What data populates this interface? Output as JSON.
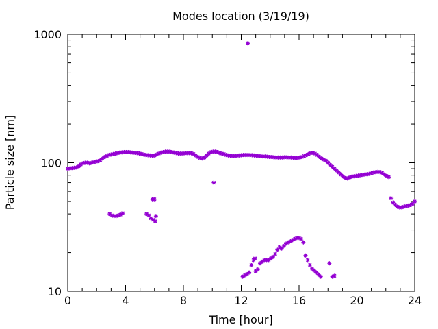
{
  "chart_data": {
    "type": "scatter",
    "title": "Modes location (3/19/19)",
    "xlabel": "Time [hour]",
    "ylabel": "Particle size [nm]",
    "xlim": [
      0,
      24
    ],
    "ylim": [
      10,
      1000
    ],
    "yscale": "log",
    "grid": false,
    "legend": "none",
    "xticks": [
      "0",
      "4",
      "8",
      "12",
      "16",
      "20",
      "24"
    ],
    "yticks": [
      "10",
      "100",
      "1000"
    ],
    "marker_color": "#9400D3",
    "marker": "asterisk",
    "series": [
      {
        "points": [
          [
            0.0,
            90
          ],
          [
            0.15,
            90.5
          ],
          [
            0.3,
            91
          ],
          [
            0.45,
            91.5
          ],
          [
            0.6,
            92
          ],
          [
            0.75,
            94
          ],
          [
            0.9,
            97
          ],
          [
            1.05,
            99
          ],
          [
            1.2,
            100
          ],
          [
            1.35,
            100
          ],
          [
            1.5,
            99
          ],
          [
            1.65,
            100
          ],
          [
            1.8,
            101
          ],
          [
            1.95,
            102
          ],
          [
            2.1,
            103
          ],
          [
            2.25,
            105
          ],
          [
            2.4,
            108
          ],
          [
            2.55,
            111
          ],
          [
            2.7,
            113
          ],
          [
            2.85,
            115
          ],
          [
            3.0,
            116
          ],
          [
            3.15,
            117
          ],
          [
            3.3,
            118
          ],
          [
            3.45,
            119
          ],
          [
            3.6,
            120
          ],
          [
            3.75,
            120.5
          ],
          [
            3.9,
            121
          ],
          [
            4.05,
            121
          ],
          [
            4.2,
            121
          ],
          [
            4.35,
            120.5
          ],
          [
            4.5,
            120
          ],
          [
            4.65,
            119.5
          ],
          [
            4.8,
            119
          ],
          [
            4.95,
            118
          ],
          [
            5.1,
            117
          ],
          [
            5.25,
            116
          ],
          [
            5.4,
            115
          ],
          [
            5.55,
            114.5
          ],
          [
            5.7,
            114
          ],
          [
            5.85,
            113.5
          ],
          [
            6.0,
            114
          ],
          [
            6.15,
            116
          ],
          [
            6.3,
            118
          ],
          [
            6.45,
            120
          ],
          [
            6.6,
            121
          ],
          [
            6.75,
            122
          ],
          [
            6.9,
            122
          ],
          [
            7.05,
            122
          ],
          [
            7.2,
            121
          ],
          [
            7.35,
            120
          ],
          [
            7.5,
            119
          ],
          [
            7.65,
            118
          ],
          [
            7.8,
            118
          ],
          [
            7.95,
            118
          ],
          [
            8.1,
            118.5
          ],
          [
            8.25,
            119
          ],
          [
            8.4,
            119
          ],
          [
            8.55,
            118.5
          ],
          [
            8.7,
            117
          ],
          [
            8.85,
            114
          ],
          [
            9.0,
            111
          ],
          [
            9.15,
            109
          ],
          [
            9.3,
            108
          ],
          [
            9.45,
            110
          ],
          [
            9.6,
            114
          ],
          [
            9.75,
            118
          ],
          [
            9.9,
            121
          ],
          [
            10.05,
            122
          ],
          [
            10.2,
            122
          ],
          [
            10.35,
            121
          ],
          [
            10.5,
            119
          ],
          [
            10.65,
            118
          ],
          [
            10.8,
            117
          ],
          [
            10.95,
            115
          ],
          [
            11.1,
            114
          ],
          [
            11.25,
            113.5
          ],
          [
            11.4,
            113
          ],
          [
            11.55,
            113
          ],
          [
            11.7,
            113.5
          ],
          [
            11.85,
            114
          ],
          [
            12.0,
            114.5
          ],
          [
            12.15,
            115
          ],
          [
            12.3,
            115
          ],
          [
            12.45,
            115
          ],
          [
            12.6,
            115
          ],
          [
            12.75,
            114.5
          ],
          [
            12.9,
            114
          ],
          [
            13.05,
            113.5
          ],
          [
            13.2,
            113
          ],
          [
            13.35,
            112.5
          ],
          [
            13.5,
            112
          ],
          [
            13.65,
            112
          ],
          [
            13.8,
            111.5
          ],
          [
            13.95,
            111
          ],
          [
            14.1,
            111
          ],
          [
            14.25,
            110.5
          ],
          [
            14.4,
            110
          ],
          [
            14.55,
            110
          ],
          [
            14.7,
            110
          ],
          [
            14.85,
            110
          ],
          [
            15.0,
            110.5
          ],
          [
            15.15,
            110.5
          ],
          [
            15.3,
            110
          ],
          [
            15.45,
            110
          ],
          [
            15.6,
            109.5
          ],
          [
            15.75,
            109
          ],
          [
            15.9,
            109.5
          ],
          [
            16.05,
            110
          ],
          [
            16.2,
            111
          ],
          [
            16.35,
            113
          ],
          [
            16.5,
            115
          ],
          [
            16.65,
            117
          ],
          [
            16.8,
            119
          ],
          [
            16.95,
            119.5
          ],
          [
            17.1,
            118
          ],
          [
            17.25,
            115
          ],
          [
            17.4,
            111
          ],
          [
            17.55,
            108
          ],
          [
            17.7,
            106
          ],
          [
            17.85,
            104
          ],
          [
            18.0,
            100
          ],
          [
            18.15,
            96
          ],
          [
            18.3,
            93
          ],
          [
            18.45,
            90
          ],
          [
            18.6,
            87
          ],
          [
            18.75,
            84
          ],
          [
            18.9,
            81
          ],
          [
            19.05,
            78
          ],
          [
            19.2,
            76
          ],
          [
            19.35,
            75.5
          ],
          [
            19.5,
            77
          ],
          [
            19.65,
            78
          ],
          [
            19.8,
            78.5
          ],
          [
            19.95,
            79
          ],
          [
            20.1,
            79.5
          ],
          [
            20.25,
            80
          ],
          [
            20.4,
            80.5
          ],
          [
            20.55,
            81
          ],
          [
            20.7,
            81.5
          ],
          [
            20.85,
            82
          ],
          [
            21.0,
            83
          ],
          [
            21.15,
            84
          ],
          [
            21.3,
            84.5
          ],
          [
            21.45,
            85
          ],
          [
            21.6,
            84.5
          ],
          [
            21.75,
            83
          ],
          [
            21.9,
            81
          ],
          [
            22.05,
            79
          ],
          [
            22.2,
            77.5
          ],
          [
            22.35,
            53
          ],
          [
            22.5,
            49
          ],
          [
            22.65,
            47
          ],
          [
            22.8,
            45.5
          ],
          [
            22.95,
            45
          ],
          [
            23.1,
            45
          ],
          [
            23.25,
            45.5
          ],
          [
            23.4,
            46
          ],
          [
            23.55,
            46.5
          ],
          [
            23.7,
            47
          ],
          [
            23.85,
            48
          ],
          [
            24.0,
            50
          ],
          [
            12.45,
            850
          ],
          [
            10.1,
            70
          ],
          [
            2.9,
            40
          ],
          [
            3.05,
            39
          ],
          [
            3.2,
            38.5
          ],
          [
            3.35,
            38.5
          ],
          [
            3.5,
            39
          ],
          [
            3.65,
            39.5
          ],
          [
            3.8,
            40.5
          ],
          [
            5.45,
            40
          ],
          [
            5.6,
            39
          ],
          [
            5.75,
            37
          ],
          [
            5.9,
            36
          ],
          [
            6.05,
            35
          ],
          [
            6.1,
            38.5
          ],
          [
            5.85,
            52
          ],
          [
            6.0,
            52
          ],
          [
            12.1,
            13
          ],
          [
            12.25,
            13.3
          ],
          [
            12.4,
            13.6
          ],
          [
            12.55,
            14
          ],
          [
            12.7,
            16
          ],
          [
            12.85,
            17.5
          ],
          [
            12.95,
            18
          ],
          [
            13.0,
            14.3
          ],
          [
            13.15,
            14.8
          ],
          [
            13.3,
            16.5
          ],
          [
            13.45,
            17
          ],
          [
            13.6,
            17.5
          ],
          [
            13.75,
            17.5
          ],
          [
            13.9,
            17.5
          ],
          [
            14.05,
            18
          ],
          [
            14.2,
            18.5
          ],
          [
            14.35,
            19.5
          ],
          [
            14.5,
            21
          ],
          [
            14.65,
            22
          ],
          [
            14.8,
            21.5
          ],
          [
            14.95,
            22.5
          ],
          [
            15.1,
            23.5
          ],
          [
            15.25,
            24
          ],
          [
            15.4,
            24.5
          ],
          [
            15.55,
            25
          ],
          [
            15.7,
            25.5
          ],
          [
            15.85,
            26
          ],
          [
            16.0,
            26
          ],
          [
            16.15,
            25.5
          ],
          [
            16.3,
            24
          ],
          [
            16.45,
            19
          ],
          [
            16.6,
            17.5
          ],
          [
            16.75,
            16
          ],
          [
            16.9,
            15
          ],
          [
            17.05,
            14.5
          ],
          [
            17.2,
            14
          ],
          [
            17.35,
            13.5
          ],
          [
            17.5,
            13
          ],
          [
            18.1,
            16.5
          ],
          [
            18.3,
            13
          ],
          [
            18.45,
            13.2
          ]
        ]
      }
    ]
  }
}
